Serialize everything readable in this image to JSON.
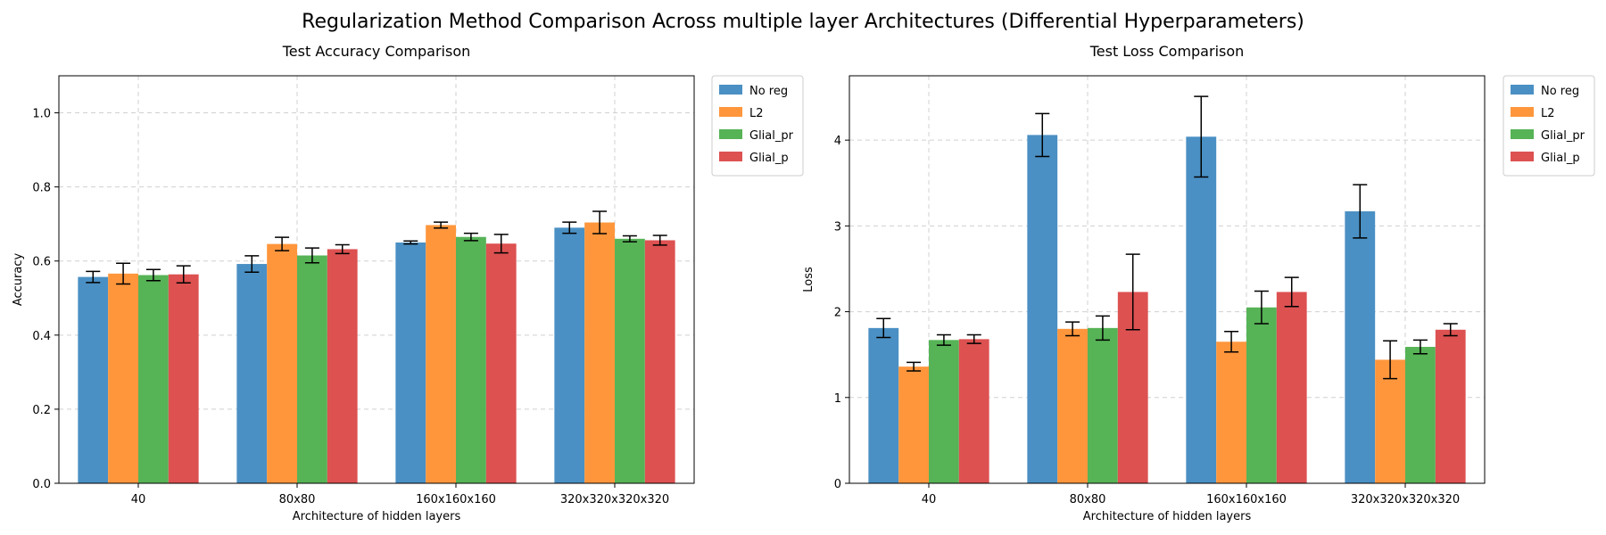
{
  "figure": {
    "suptitle": "Regularization Method Comparison Across multiple layer Architectures (Differential Hyperparameters)"
  },
  "chart_data": [
    {
      "type": "bar",
      "title": "Test Accuracy Comparison",
      "xlabel": "Architecture of hidden layers",
      "ylabel": "Accuracy",
      "categories": [
        "40",
        "80x80",
        "160x160x160",
        "320x320x320x320"
      ],
      "ylim": [
        0,
        1.1
      ],
      "yticks": [
        "0.0",
        "0.2",
        "0.4",
        "0.6",
        "0.8",
        "1.0"
      ],
      "grid": true,
      "legend_position": "outside-upper-right",
      "series": [
        {
          "name": "No reg",
          "color": "#4a90c4",
          "values": [
            0.557,
            0.592,
            0.65,
            0.69
          ],
          "errors": [
            0.015,
            0.022,
            0.004,
            0.015
          ]
        },
        {
          "name": "L2",
          "color": "#ff963c",
          "values": [
            0.566,
            0.646,
            0.697,
            0.704
          ],
          "errors": [
            0.028,
            0.018,
            0.008,
            0.03
          ]
        },
        {
          "name": "Glial_pr",
          "color": "#56b356",
          "values": [
            0.562,
            0.615,
            0.665,
            0.66
          ],
          "errors": [
            0.015,
            0.02,
            0.01,
            0.008
          ]
        },
        {
          "name": "Glial_p",
          "color": "#dd5151",
          "values": [
            0.564,
            0.632,
            0.647,
            0.656
          ],
          "errors": [
            0.023,
            0.012,
            0.025,
            0.013
          ]
        }
      ]
    },
    {
      "type": "bar",
      "title": "Test Loss Comparison",
      "xlabel": "Architecture of hidden layers",
      "ylabel": "Loss",
      "categories": [
        "40",
        "80x80",
        "160x160x160",
        "320x320x320x320"
      ],
      "ylim": [
        0,
        4.75
      ],
      "yticks": [
        "0",
        "1",
        "2",
        "3",
        "4"
      ],
      "grid": true,
      "legend_position": "outside-upper-right",
      "series": [
        {
          "name": "No reg",
          "color": "#4a90c4",
          "values": [
            1.81,
            4.06,
            4.04,
            3.17
          ],
          "errors": [
            0.11,
            0.25,
            0.47,
            0.31
          ]
        },
        {
          "name": "L2",
          "color": "#ff963c",
          "values": [
            1.36,
            1.8,
            1.65,
            1.44
          ],
          "errors": [
            0.05,
            0.08,
            0.12,
            0.22
          ]
        },
        {
          "name": "Glial_pr",
          "color": "#56b356",
          "values": [
            1.67,
            1.81,
            2.05,
            1.59
          ],
          "errors": [
            0.06,
            0.14,
            0.19,
            0.08
          ]
        },
        {
          "name": "Glial_p",
          "color": "#dd5151",
          "values": [
            1.68,
            2.23,
            2.23,
            1.79
          ],
          "errors": [
            0.05,
            0.44,
            0.17,
            0.07
          ]
        }
      ]
    }
  ]
}
